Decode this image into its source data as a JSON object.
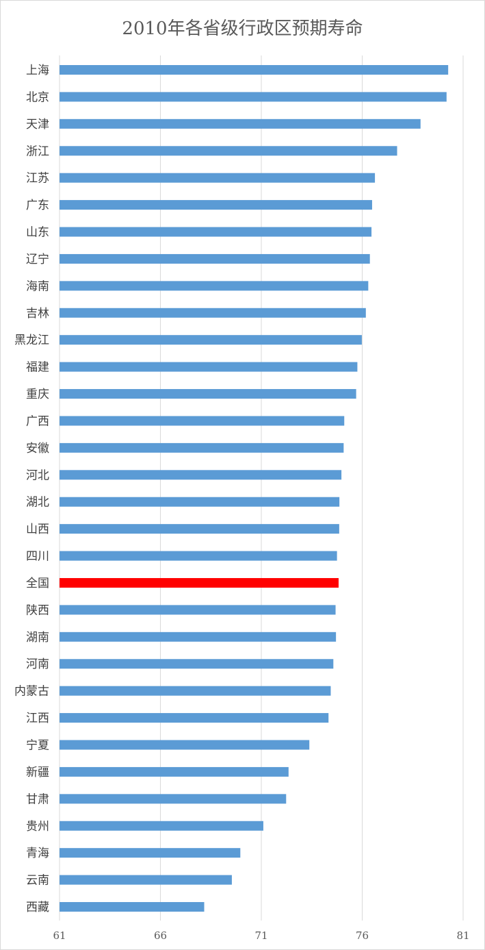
{
  "chart_data": {
    "type": "bar",
    "orientation": "horizontal",
    "title": "2010年各省级行政区预期寿命",
    "xlabel": "",
    "ylabel": "",
    "xlim": [
      61,
      81
    ],
    "x_ticks": [
      61,
      66,
      71,
      76,
      81
    ],
    "grid": "vertical",
    "categories": [
      "上海",
      "北京",
      "天津",
      "浙江",
      "江苏",
      "广东",
      "山东",
      "辽宁",
      "海南",
      "吉林",
      "黑龙江",
      "福建",
      "重庆",
      "广西",
      "安徽",
      "河北",
      "湖北",
      "山西",
      "四川",
      "全国",
      "陕西",
      "湖南",
      "河南",
      "内蒙古",
      "江西",
      "宁夏",
      "新疆",
      "甘肃",
      "贵州",
      "青海",
      "云南",
      "西藏"
    ],
    "values": [
      80.26,
      80.18,
      78.89,
      77.73,
      76.63,
      76.49,
      76.46,
      76.38,
      76.3,
      76.18,
      75.98,
      75.76,
      75.7,
      75.11,
      75.08,
      74.97,
      74.87,
      74.86,
      74.75,
      74.83,
      74.68,
      74.7,
      74.57,
      74.44,
      74.33,
      73.38,
      72.35,
      72.23,
      71.1,
      69.96,
      69.54,
      68.17
    ],
    "colors": {
      "bar": "#5b9bd5",
      "highlight": "#ff0000",
      "grid": "#d9d9d9"
    },
    "highlight_category": "全国"
  }
}
